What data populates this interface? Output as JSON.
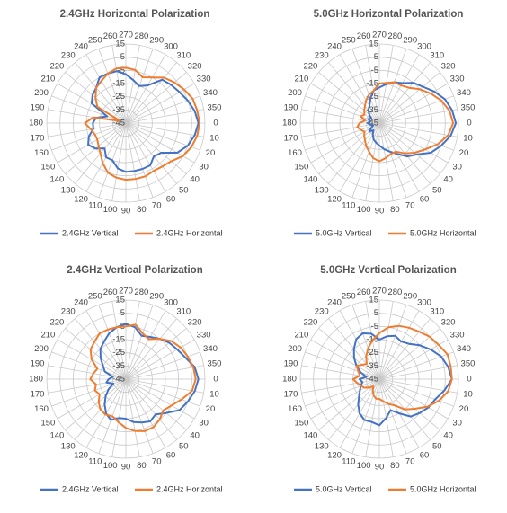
{
  "chart_data": [
    {
      "type": "radar",
      "title": "2.4GHz Horizontal Polarization",
      "categories": [
        0,
        10,
        20,
        30,
        40,
        50,
        60,
        70,
        80,
        90,
        100,
        110,
        120,
        130,
        140,
        150,
        160,
        170,
        180,
        190,
        200,
        210,
        220,
        230,
        240,
        250,
        260,
        270,
        280,
        290,
        300,
        310,
        320,
        330,
        340,
        350
      ],
      "ylim": [
        -45,
        15
      ],
      "yticks": [
        -45,
        -35,
        -25,
        -15,
        -5,
        5,
        15
      ],
      "grid": true,
      "legend": "bottom",
      "series": [
        {
          "name": "2.4GHz Vertical",
          "color": "#4472c4",
          "values": [
            10,
            8,
            5,
            0,
            -10,
            -12,
            -8,
            -8,
            -8,
            -8,
            -10,
            -15,
            -15,
            -20,
            -15,
            -12,
            -15,
            -20,
            -20,
            -22,
            -30,
            -15,
            -12,
            -10,
            -5,
            -5,
            -5,
            -8,
            -12,
            -15,
            -12,
            -2,
            0,
            2,
            5,
            8
          ]
        },
        {
          "name": "2.4GHz Horizontal",
          "color": "#ed7d31",
          "values": [
            11,
            10,
            8,
            5,
            0,
            -2,
            -3,
            -2,
            -2,
            -2,
            -3,
            -5,
            -10,
            -15,
            -18,
            -20,
            -20,
            -18,
            -14,
            -20,
            -40,
            -20,
            -15,
            -10,
            -8,
            -5,
            -3,
            -3,
            -4,
            -8,
            -5,
            0,
            3,
            6,
            9,
            10
          ]
        }
      ]
    },
    {
      "type": "radar",
      "title": "5.0GHz Horizontal Polarization",
      "categories": [
        0,
        10,
        20,
        30,
        40,
        50,
        60,
        70,
        80,
        90,
        100,
        110,
        120,
        130,
        140,
        150,
        160,
        170,
        180,
        190,
        200,
        210,
        220,
        230,
        240,
        250,
        260,
        270,
        280,
        290,
        300,
        310,
        320,
        330,
        340,
        350
      ],
      "ylim": [
        -45,
        15
      ],
      "yticks": [
        -45,
        -35,
        -25,
        -15,
        -5,
        5,
        15
      ],
      "grid": true,
      "legend": "bottom",
      "series": [
        {
          "name": "5.0GHz Vertical",
          "color": "#4472c4",
          "values": [
            13,
            10,
            5,
            0,
            -8,
            -12,
            -18,
            -22,
            -25,
            -28,
            -30,
            -32,
            -35,
            -38,
            -35,
            -38,
            -40,
            -38,
            -36,
            -38,
            -36,
            -38,
            -35,
            -32,
            -30,
            -25,
            -20,
            -18,
            -15,
            -12,
            -10,
            -5,
            -2,
            3,
            8,
            11
          ]
        },
        {
          "name": "5.0GHz Horizontal",
          "color": "#ed7d31",
          "values": [
            11,
            8,
            2,
            -5,
            -10,
            -15,
            -20,
            -20,
            -18,
            -16,
            -18,
            -22,
            -25,
            -28,
            -30,
            -32,
            -30,
            -28,
            -30,
            -34,
            -30,
            -32,
            -30,
            -28,
            -25,
            -22,
            -20,
            -15,
            -14,
            -12,
            -12,
            -10,
            -5,
            0,
            5,
            9
          ]
        }
      ]
    },
    {
      "type": "radar",
      "title": "2.4GHz Vertical Polarization",
      "categories": [
        0,
        10,
        20,
        30,
        40,
        50,
        60,
        70,
        80,
        90,
        100,
        110,
        120,
        130,
        140,
        150,
        160,
        170,
        180,
        190,
        200,
        210,
        220,
        230,
        240,
        250,
        260,
        270,
        280,
        290,
        300,
        310,
        320,
        330,
        340,
        350
      ],
      "ylim": [
        -45,
        15
      ],
      "yticks": [
        -45,
        -35,
        -25,
        -15,
        -5,
        5,
        15
      ],
      "grid": true,
      "legend": "bottom",
      "series": [
        {
          "name": "2.4GHz Vertical",
          "color": "#4472c4",
          "values": [
            10,
            8,
            5,
            2,
            -5,
            -10,
            -8,
            -10,
            -12,
            -15,
            -15,
            -12,
            -15,
            -20,
            -25,
            -30,
            -35,
            -30,
            -32,
            -35,
            -28,
            -25,
            -20,
            -15,
            -12,
            -8,
            -5,
            -3,
            -5,
            -10,
            -8,
            -5,
            -2,
            0,
            3,
            8
          ]
        },
        {
          "name": "2.4GHz Horizontal",
          "color": "#ed7d31",
          "values": [
            8,
            6,
            0,
            -5,
            -8,
            -5,
            -3,
            -3,
            -5,
            -8,
            -12,
            -15,
            -14,
            -15,
            -18,
            -22,
            -20,
            -22,
            -18,
            -20,
            -22,
            -15,
            -10,
            -8,
            -5,
            -5,
            -5,
            -5,
            -3,
            -8,
            -10,
            -5,
            0,
            3,
            5,
            7
          ]
        }
      ]
    },
    {
      "type": "radar",
      "title": "5.0GHz Vertical Polarization",
      "categories": [
        0,
        10,
        20,
        30,
        40,
        50,
        60,
        70,
        80,
        90,
        100,
        110,
        120,
        130,
        140,
        150,
        160,
        170,
        180,
        190,
        200,
        210,
        220,
        230,
        240,
        250,
        260,
        270,
        280,
        290,
        300,
        310,
        320,
        330,
        340,
        350
      ],
      "ylim": [
        -45,
        15
      ],
      "yticks": [
        -45,
        -35,
        -25,
        -15,
        -5,
        5,
        15
      ],
      "grid": true,
      "legend": "bottom",
      "series": [
        {
          "name": "5.0GHz Vertical",
          "color": "#4472c4",
          "values": [
            10,
            5,
            0,
            -2,
            -5,
            -8,
            -15,
            -20,
            -15,
            -10,
            -12,
            -12,
            -15,
            -20,
            -25,
            -28,
            -30,
            -32,
            -30,
            -35,
            -30,
            -25,
            -20,
            -15,
            -10,
            -8,
            -10,
            -15,
            -12,
            -10,
            -12,
            -10,
            -5,
            0,
            5,
            8
          ]
        },
        {
          "name": "5.0GHz Horizontal",
          "color": "#ed7d31",
          "values": [
            10,
            8,
            3,
            -3,
            -10,
            -15,
            -22,
            -25,
            -28,
            -30,
            -30,
            -32,
            -35,
            -38,
            -35,
            -32,
            -30,
            -28,
            -25,
            -30,
            -28,
            -25,
            -28,
            -30,
            -25,
            -20,
            -15,
            -10,
            -5,
            -2,
            0,
            2,
            5,
            7,
            10,
            10
          ]
        }
      ]
    }
  ]
}
